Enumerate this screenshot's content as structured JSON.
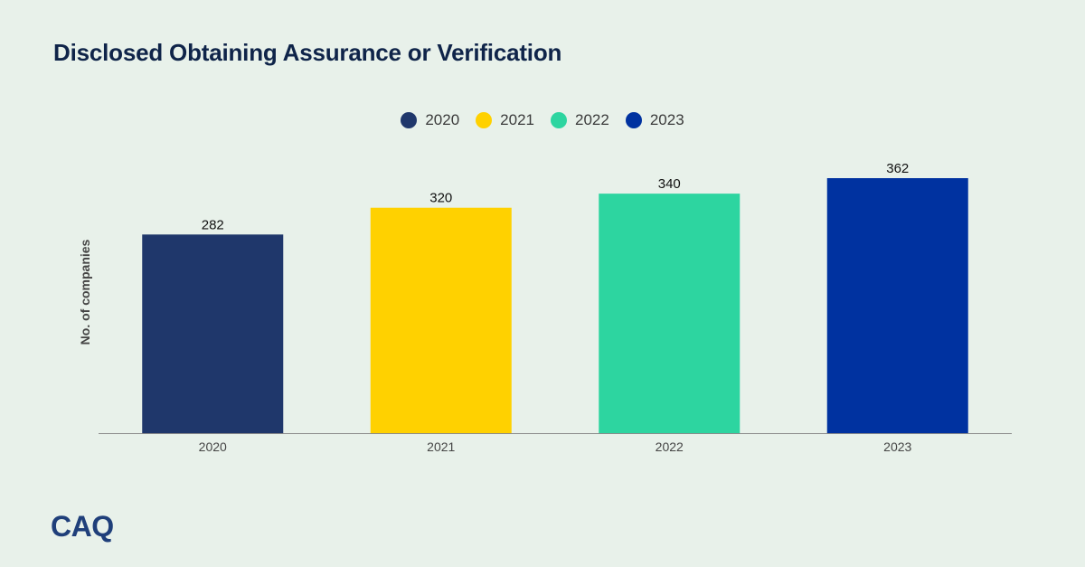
{
  "chart_data": {
    "type": "bar",
    "title": "Disclosed Obtaining Assurance or Verification",
    "ylabel": "No. of companies",
    "xlabel": "",
    "categories": [
      "2020",
      "2021",
      "2022",
      "2023"
    ],
    "values": [
      282,
      320,
      340,
      362
    ],
    "colors": [
      "#1f376b",
      "#ffd100",
      "#2dd5a0",
      "#0032a0"
    ],
    "legend": [
      {
        "label": "2020",
        "color": "#1f376b"
      },
      {
        "label": "2021",
        "color": "#ffd100"
      },
      {
        "label": "2022",
        "color": "#2dd5a0"
      },
      {
        "label": "2023",
        "color": "#0032a0"
      }
    ],
    "legend_position": "top-center",
    "ylim": [
      0,
      362
    ],
    "grid": false
  },
  "branding": {
    "logo_text": "CAQ"
  }
}
